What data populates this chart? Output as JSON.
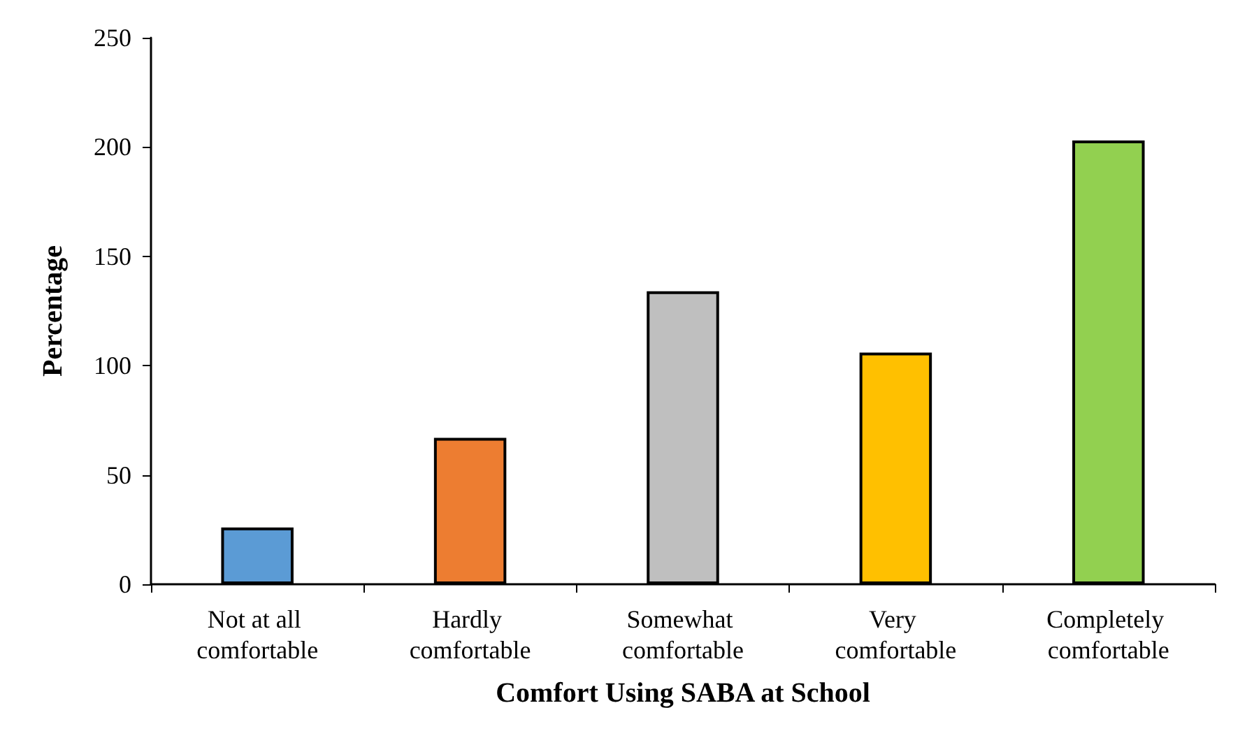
{
  "chart_data": {
    "type": "bar",
    "xlabel": "Comfort Using SABA at School",
    "ylabel": "Percentage",
    "categories": [
      "Not at all comfortable",
      "Hardly comfortable",
      "Somewhat comfortable",
      "Very comfortable",
      "Completely comfortable"
    ],
    "values": [
      26,
      67,
      134,
      106,
      203
    ],
    "colors": [
      "#5b9bd5",
      "#ed7d31",
      "#bfbfbf",
      "#ffc000",
      "#92d050"
    ],
    "ylim": [
      0,
      250
    ],
    "yticks": [
      0,
      50,
      100,
      150,
      200,
      250
    ],
    "grid": false
  }
}
